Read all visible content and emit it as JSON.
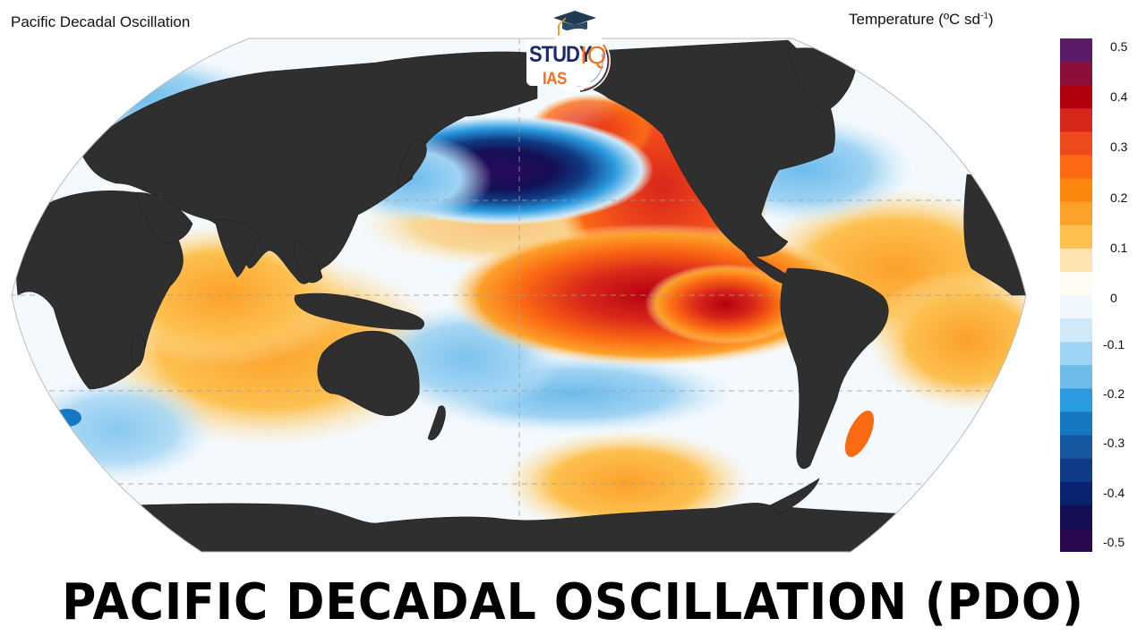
{
  "map": {
    "title": "Pacific Decadal Oscillation",
    "projection": "Robinson (Pacific-centered)",
    "land_color": "#2f2f2f",
    "graticule_color": "#9e9e9e",
    "features": [
      {
        "name": "north-pacific-cold-anomaly",
        "sign": "negative",
        "value_approx": -0.5,
        "color": "#2a0a5e"
      },
      {
        "name": "northeast-pacific-coastal-warm-anomaly",
        "sign": "positive",
        "value_approx": 0.35,
        "color": "#e8401c"
      },
      {
        "name": "eastern-tropical-pacific-warm-anomaly",
        "sign": "positive",
        "value_approx": 0.45,
        "color": "#c00d0d"
      },
      {
        "name": "indian-ocean-warm-anomaly",
        "sign": "positive",
        "value_approx": 0.12,
        "color": "#fbb23a"
      },
      {
        "name": "south-pacific-cool-band",
        "sign": "negative",
        "value_approx": -0.15,
        "color": "#7dc4ee"
      },
      {
        "name": "north-atlantic-cool-anomaly",
        "sign": "negative",
        "value_approx": -0.12,
        "color": "#9fd3f3"
      },
      {
        "name": "south-pacific-warm-patch",
        "sign": "positive",
        "value_approx": 0.15,
        "color": "#fbb23a"
      }
    ]
  },
  "legend": {
    "title_prefix": "Temperature (",
    "title_unit": "ºC sd",
    "title_sup": "-1",
    "title_suffix": ")",
    "ticks": [
      "0.5",
      "0.4",
      "0.3",
      "0.2",
      "0.1",
      "0",
      "-0.1",
      "-0.2",
      "-0.3",
      "-0.4",
      "-0.5"
    ],
    "range": [
      -0.5,
      0.5
    ],
    "colors_top_to_bottom": [
      "#5a1a66",
      "#8a0f3a",
      "#b3000d",
      "#d9261a",
      "#ef4a1c",
      "#fb6a13",
      "#fd860e",
      "#fca12a",
      "#fdc04f",
      "#fde4b0",
      "#fffaf2",
      "#f1f8fd",
      "#cfe9f9",
      "#9fd3f3",
      "#6dbcec",
      "#2a9be0",
      "#1677c3",
      "#1558a0",
      "#0f3c85",
      "#08246e",
      "#140f55",
      "#2a0a4e"
    ]
  },
  "logo": {
    "line1": "STUDY",
    "line2": "IAS",
    "mark": "IQ",
    "icon": "graduation-cap-icon"
  },
  "headline": "PACIFIC DECADAL OSCILLATION (PDO)"
}
